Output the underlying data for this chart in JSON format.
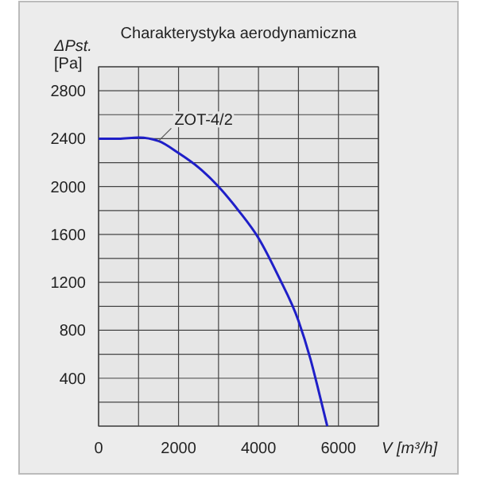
{
  "chart_data": {
    "type": "line",
    "title": "Charakterystyka aerodynamiczna",
    "xlabel": "V [m³/h]",
    "ylabel": "ΔPst. [Pa]",
    "xlim": [
      0,
      7000
    ],
    "xticks": [
      0,
      {
        "value": 1000,
        "label": null
      },
      2000,
      {
        "value": 3000,
        "label": null
      },
      4000,
      {
        "value": 5000,
        "label": null
      },
      6000,
      {
        "value": 7000,
        "label": null
      }
    ],
    "ylim": [
      0,
      3000
    ],
    "yticks": [
      {
        "value": 0,
        "label": null
      },
      {
        "value": 200,
        "label": null
      },
      400,
      {
        "value": 600,
        "label": null
      },
      800,
      {
        "value": 1000,
        "label": null
      },
      1200,
      {
        "value": 1400,
        "label": null
      },
      1600,
      {
        "value": 1800,
        "label": null
      },
      2000,
      {
        "value": 2200,
        "label": null
      },
      2400,
      {
        "value": 2600,
        "label": null
      },
      2800,
      {
        "value": 3000,
        "label": null
      }
    ],
    "grid": true,
    "series": [
      {
        "name": "ZOT-4/2",
        "color": "#1f1fc8",
        "x": [
          0,
          500,
          1000,
          1500,
          2000,
          2500,
          3000,
          3500,
          4000,
          4500,
          5000,
          5300,
          5500,
          5720
        ],
        "values": [
          2400,
          2400,
          2410,
          2380,
          2280,
          2160,
          2000,
          1800,
          1570,
          1250,
          880,
          560,
          300,
          0
        ]
      }
    ]
  }
}
